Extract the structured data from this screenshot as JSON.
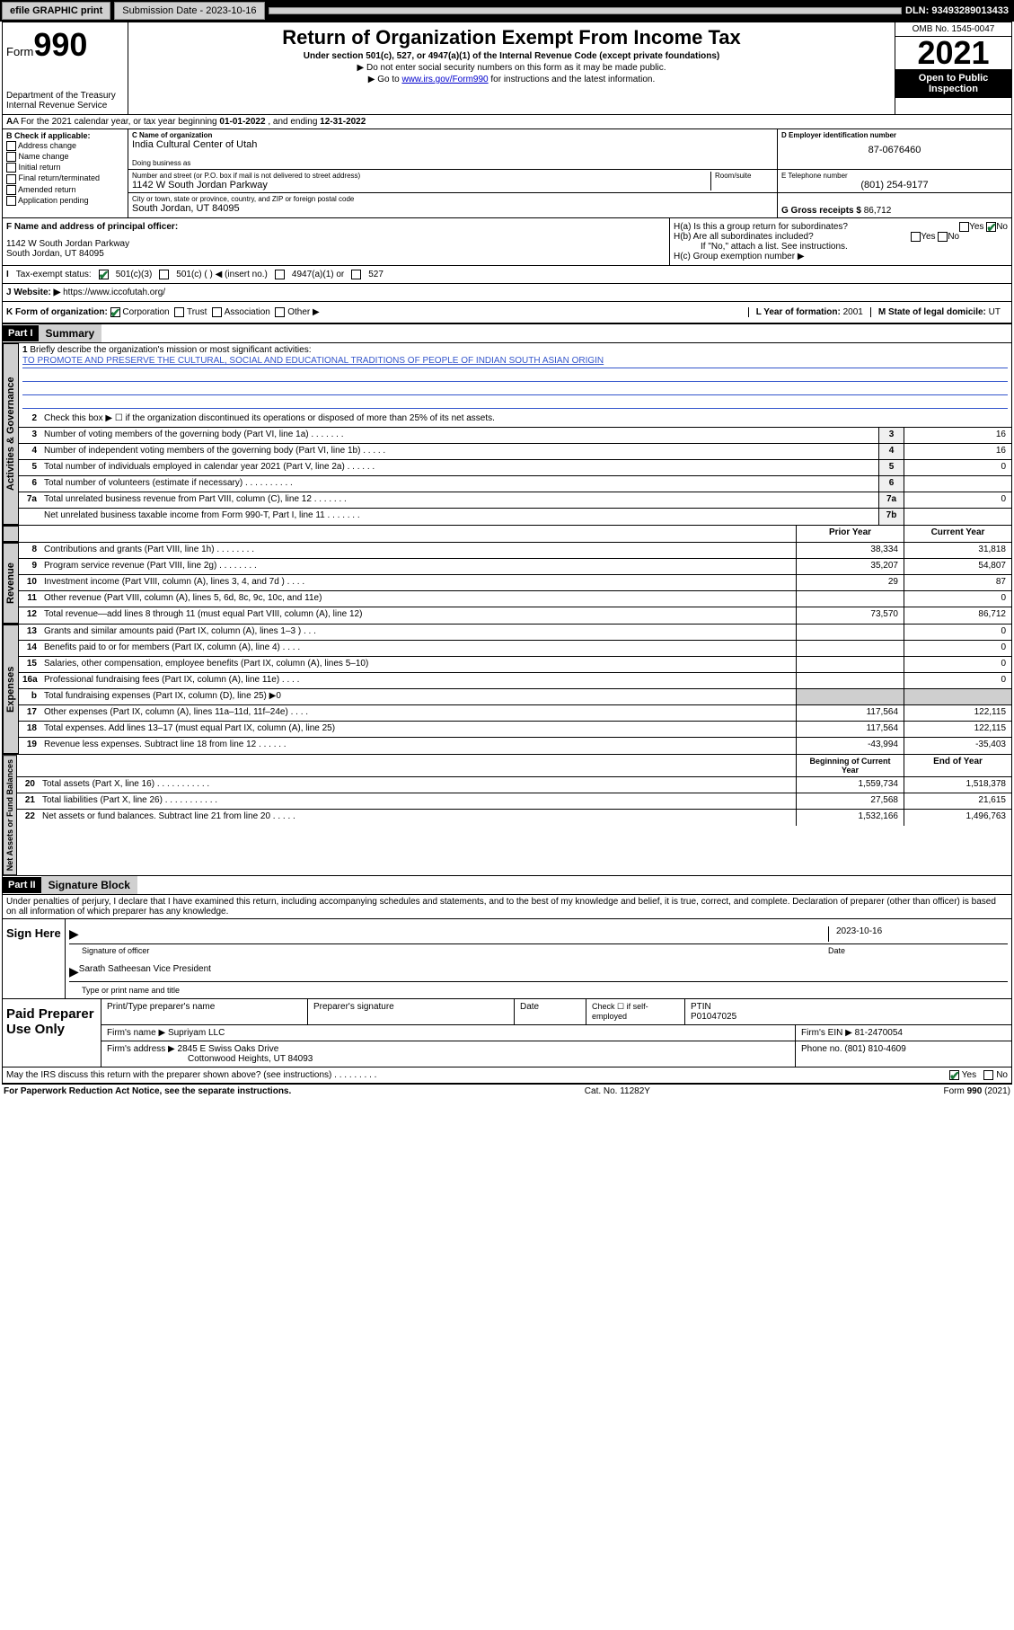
{
  "topbar": {
    "efile": "efile GRAPHIC print",
    "submission_label": "Submission Date - 2023-10-16",
    "dln": "DLN: 93493289013433"
  },
  "header": {
    "form_prefix": "Form",
    "form_number": "990",
    "dept": "Department of the Treasury",
    "irs": "Internal Revenue Service",
    "title": "Return of Organization Exempt From Income Tax",
    "subtitle": "Under section 501(c), 527, or 4947(a)(1) of the Internal Revenue Code (except private foundations)",
    "note1": "▶ Do not enter social security numbers on this form as it may be made public.",
    "note2_pre": "▶ Go to ",
    "note2_link": "www.irs.gov/Form990",
    "note2_post": " for instructions and the latest information.",
    "omb": "OMB No. 1545-0047",
    "year": "2021",
    "inspect": "Open to Public Inspection"
  },
  "row_a": {
    "text_pre": "A For the 2021 calendar year, or tax year beginning ",
    "begin": "01-01-2022",
    "mid": " , and ending ",
    "end": "12-31-2022"
  },
  "col_b": {
    "label": "B Check if applicable:",
    "items": [
      "Address change",
      "Name change",
      "Initial return",
      "Final return/terminated",
      "Amended return",
      "Application pending"
    ]
  },
  "col_c": {
    "name_lbl": "C Name of organization",
    "name": "India Cultural Center of Utah",
    "dba_lbl": "Doing business as",
    "dba": "",
    "street_lbl": "Number and street (or P.O. box if mail is not delivered to street address)",
    "room_lbl": "Room/suite",
    "street": "1142 W South Jordan Parkway",
    "city_lbl": "City or town, state or province, country, and ZIP or foreign postal code",
    "city": "South Jordan, UT  84095"
  },
  "col_d": {
    "lbl": "D Employer identification number",
    "val": "87-0676460"
  },
  "col_e": {
    "lbl": "E Telephone number",
    "val": "(801) 254-9177"
  },
  "col_g": {
    "lbl": "G Gross receipts $",
    "val": "86,712"
  },
  "col_f": {
    "lbl": "F Name and address of principal officer:",
    "addr1": "1142 W South Jordan Parkway",
    "addr2": "South Jordan, UT  84095"
  },
  "col_h": {
    "ha": "H(a)  Is this a group return for subordinates?",
    "hb": "H(b)  Are all subordinates included?",
    "hb_note": "If \"No,\" attach a list. See instructions.",
    "hc": "H(c)  Group exemption number ▶"
  },
  "row_i": {
    "lbl": "Tax-exempt status:",
    "c1": "501(c)(3)",
    "c2": "501(c) (   ) ◀ (insert no.)",
    "c3": "4947(a)(1) or",
    "c4": "527"
  },
  "row_j": {
    "lbl": "J   Website: ▶",
    "val": "https://www.iccofutah.org/"
  },
  "row_k": {
    "lbl": "K Form of organization:",
    "opts": [
      "Corporation",
      "Trust",
      "Association",
      "Other ▶"
    ],
    "l_lbl": "L Year of formation:",
    "l_val": "2001",
    "m_lbl": "M State of legal domicile:",
    "m_val": "UT"
  },
  "part1": {
    "hdr": "Part I",
    "title": "Summary",
    "q1": "Briefly describe the organization's mission or most significant activities:",
    "mission": "TO PROMOTE AND PRESERVE THE CULTURAL, SOCIAL AND EDUCATIONAL TRADITIONS OF PEOPLE OF INDIAN SOUTH ASIAN ORIGIN",
    "q2": "Check this box ▶ ☐  if the organization discontinued its operations or disposed of more than 25% of its net assets.",
    "lines_gov": [
      {
        "n": "3",
        "t": "Number of voting members of the governing body (Part VI, line 1a)   .    .    .    .    .    .    .",
        "box": "3",
        "v": "16"
      },
      {
        "n": "4",
        "t": "Number of independent voting members of the governing body (Part VI, line 1b)   .    .    .    .    .",
        "box": "4",
        "v": "16"
      },
      {
        "n": "5",
        "t": "Total number of individuals employed in calendar year 2021 (Part V, line 2a)   .    .    .    .    .    .",
        "box": "5",
        "v": "0"
      },
      {
        "n": "6",
        "t": "Total number of volunteers (estimate if necessary)   .    .    .    .    .    .    .    .    .    .",
        "box": "6",
        "v": ""
      },
      {
        "n": "7a",
        "t": "Total unrelated business revenue from Part VIII, column (C), line 12   .    .    .    .    .    .    .",
        "box": "7a",
        "v": "0"
      },
      {
        "n": "",
        "t": "Net unrelated business taxable income from Form 990-T, Part I, line 11   .    .    .    .    .    .    .",
        "box": "7b",
        "v": ""
      }
    ],
    "col_prior": "Prior Year",
    "col_curr": "Current Year",
    "revenue": [
      {
        "n": "8",
        "t": "Contributions and grants (Part VIII, line 1h)   .    .    .    .    .    .    .    .",
        "p": "38,334",
        "c": "31,818"
      },
      {
        "n": "9",
        "t": "Program service revenue (Part VIII, line 2g)   .    .    .    .    .    .    .    .",
        "p": "35,207",
        "c": "54,807"
      },
      {
        "n": "10",
        "t": "Investment income (Part VIII, column (A), lines 3, 4, and 7d )   .    .    .    .",
        "p": "29",
        "c": "87"
      },
      {
        "n": "11",
        "t": "Other revenue (Part VIII, column (A), lines 5, 6d, 8c, 9c, 10c, and 11e)",
        "p": "",
        "c": "0"
      },
      {
        "n": "12",
        "t": "Total revenue—add lines 8 through 11 (must equal Part VIII, column (A), line 12)",
        "p": "73,570",
        "c": "86,712"
      }
    ],
    "expenses": [
      {
        "n": "13",
        "t": "Grants and similar amounts paid (Part IX, column (A), lines 1–3 )   .    .    .",
        "p": "",
        "c": "0"
      },
      {
        "n": "14",
        "t": "Benefits paid to or for members (Part IX, column (A), line 4)   .    .    .    .",
        "p": "",
        "c": "0"
      },
      {
        "n": "15",
        "t": "Salaries, other compensation, employee benefits (Part IX, column (A), lines 5–10)",
        "p": "",
        "c": "0"
      },
      {
        "n": "16a",
        "t": "Professional fundraising fees (Part IX, column (A), line 11e)   .    .    .    .",
        "p": "",
        "c": "0"
      },
      {
        "n": "b",
        "t": "Total fundraising expenses (Part IX, column (D), line 25) ▶0",
        "p": "SHADE",
        "c": "SHADE"
      },
      {
        "n": "17",
        "t": "Other expenses (Part IX, column (A), lines 11a–11d, 11f–24e)   .    .    .    .",
        "p": "117,564",
        "c": "122,115"
      },
      {
        "n": "18",
        "t": "Total expenses. Add lines 13–17 (must equal Part IX, column (A), line 25)",
        "p": "117,564",
        "c": "122,115"
      },
      {
        "n": "19",
        "t": "Revenue less expenses. Subtract line 18 from line 12   .    .    .    .    .    .",
        "p": "-43,994",
        "c": "-35,403"
      }
    ],
    "col_begin": "Beginning of Current Year",
    "col_end": "End of Year",
    "net": [
      {
        "n": "20",
        "t": "Total assets (Part X, line 16)   .    .    .    .    .    .    .    .    .    .    .",
        "p": "1,559,734",
        "c": "1,518,378"
      },
      {
        "n": "21",
        "t": "Total liabilities (Part X, line 26)   .    .    .    .    .    .    .    .    .    .    .",
        "p": "27,568",
        "c": "21,615"
      },
      {
        "n": "22",
        "t": "Net assets or fund balances. Subtract line 21 from line 20   .    .    .    .    .",
        "p": "1,532,166",
        "c": "1,496,763"
      }
    ]
  },
  "tabs": {
    "gov": "Activities & Governance",
    "rev": "Revenue",
    "exp": "Expenses",
    "net": "Net Assets or Fund Balances"
  },
  "part2": {
    "hdr": "Part II",
    "title": "Signature Block",
    "decl": "Under penalties of perjury, I declare that I have examined this return, including accompanying schedules and statements, and to the best of my knowledge and belief, it is true, correct, and complete. Declaration of preparer (other than officer) is based on all information of which preparer has any knowledge."
  },
  "sign": {
    "here": "Sign Here",
    "sig_officer": "Signature of officer",
    "date": "Date",
    "date_val": "2023-10-16",
    "name": "Sarath Satheesan  Vice President",
    "name_lbl": "Type or print name and title"
  },
  "prep": {
    "lbl": "Paid Preparer Use Only",
    "h1": "Print/Type preparer's name",
    "h2": "Preparer's signature",
    "h3": "Date",
    "h4_pre": "Check ☐ if self-employed",
    "h5": "PTIN",
    "ptin": "P01047025",
    "firm_lbl": "Firm's name    ▶",
    "firm": "Supriyam LLC",
    "ein_lbl": "Firm's EIN ▶",
    "ein": "81-2470054",
    "addr_lbl": "Firm's address ▶",
    "addr1": "2845 E Swiss Oaks Drive",
    "addr2": "Cottonwood Heights, UT  84093",
    "phone_lbl": "Phone no.",
    "phone": "(801) 810-4609"
  },
  "bottom": {
    "q": "May the IRS discuss this return with the preparer shown above? (see instructions)   .    .    .    .    .    .    .    .    .",
    "yes": "Yes",
    "no": "No"
  },
  "footer": {
    "left": "For Paperwork Reduction Act Notice, see the separate instructions.",
    "mid": "Cat. No. 11282Y",
    "right": "Form 990 (2021)"
  }
}
